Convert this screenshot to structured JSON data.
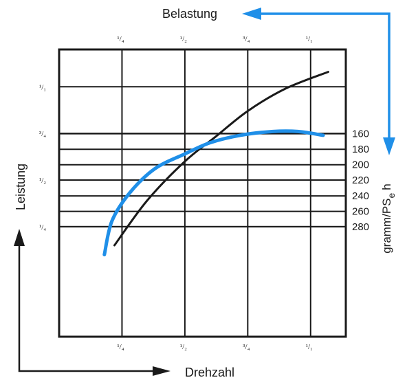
{
  "chart_data": {
    "type": "line",
    "title": "",
    "top_axis": {
      "label": "Belastung",
      "ticks": [
        "¹/₄",
        "¹/₂",
        "³/₄",
        "¹/₁"
      ],
      "tick_values": [
        0.25,
        0.5,
        0.75,
        1.0
      ],
      "range": [
        0,
        1.14
      ]
    },
    "x_axis": {
      "label": "Drehzahl",
      "ticks": [
        "¹/₄",
        "¹/₂",
        "³/₄",
        "¹/₁"
      ],
      "tick_values": [
        0.25,
        0.5,
        0.75,
        1.0
      ],
      "range": [
        0,
        1.14
      ]
    },
    "y_axis": {
      "label": "Leistung",
      "ticks": [
        "¹/₄",
        "¹/₂",
        "³/₄",
        "¹/₁"
      ],
      "tick_values": [
        0.25,
        0.5,
        0.75,
        1.0
      ],
      "range": [
        -0.34,
        1.2
      ]
    },
    "y2_axis": {
      "label": "gramm/PS",
      "label_subscript": "e",
      "label_suffix": "h",
      "ticks": [
        "160",
        "180",
        "200",
        "220",
        "240",
        "260",
        "280"
      ],
      "tick_values": [
        160,
        180,
        200,
        220,
        240,
        260,
        280
      ],
      "tick_y_positions": [
        0.748,
        0.665,
        0.582,
        0.5,
        0.415,
        0.332,
        0.25
      ]
    },
    "grid": true,
    "series": [
      {
        "color": "#1a1a1a",
        "axis": "primary",
        "points": [
          [
            0.22,
            0.15
          ],
          [
            0.35,
            0.39
          ],
          [
            0.5,
            0.6
          ],
          [
            0.62,
            0.73
          ],
          [
            0.75,
            0.87
          ],
          [
            0.9,
            0.99
          ],
          [
            1.07,
            1.08
          ]
        ]
      },
      {
        "color": "#1f8fe8",
        "axis": "primary",
        "points": [
          [
            0.18,
            0.1
          ],
          [
            0.21,
            0.28
          ],
          [
            0.28,
            0.43
          ],
          [
            0.38,
            0.56
          ],
          [
            0.5,
            0.64
          ],
          [
            0.6,
            0.7
          ],
          [
            0.72,
            0.74
          ],
          [
            0.85,
            0.76
          ],
          [
            0.95,
            0.76
          ],
          [
            1.05,
            0.74
          ]
        ]
      }
    ],
    "arrows": [
      {
        "name": "belastung-arrow",
        "color": "#1f8fe8"
      },
      {
        "name": "leistung-arrow",
        "color": "#1a1a1a"
      },
      {
        "name": "drehzahl-arrow",
        "color": "#1a1a1a"
      }
    ]
  }
}
